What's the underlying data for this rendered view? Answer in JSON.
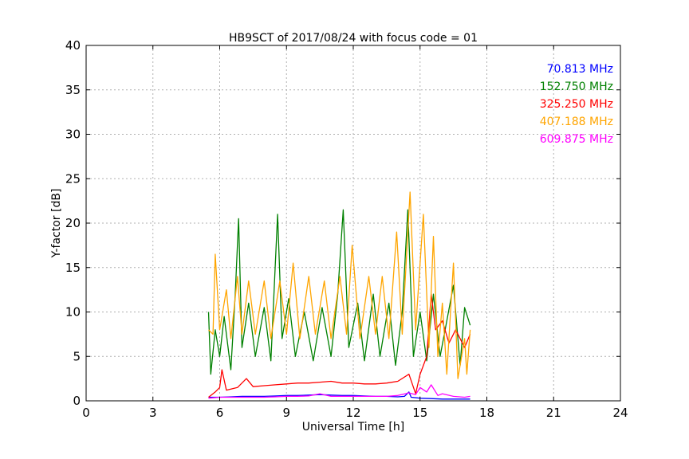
{
  "chart_data": {
    "type": "line",
    "title": "HB9SCT of 2017/08/24 with focus code = 01",
    "xlabel": "Universal Time [h]",
    "ylabel": "Y-factor [dB]",
    "xlim": [
      0,
      24
    ],
    "ylim": [
      0,
      40
    ],
    "xticks": [
      0,
      3,
      6,
      9,
      12,
      15,
      18,
      21,
      24
    ],
    "yticks": [
      0,
      5,
      10,
      15,
      20,
      25,
      30,
      35,
      40
    ],
    "grid": true,
    "legend_position": "top-right",
    "series": [
      {
        "name": "70.813 MHz",
        "color": "#0000ff",
        "points": [
          [
            5.5,
            0.4
          ],
          [
            6.0,
            0.4
          ],
          [
            6.5,
            0.45
          ],
          [
            7.0,
            0.5
          ],
          [
            7.5,
            0.5
          ],
          [
            8.0,
            0.5
          ],
          [
            8.5,
            0.55
          ],
          [
            9.0,
            0.6
          ],
          [
            9.5,
            0.6
          ],
          [
            10.0,
            0.65
          ],
          [
            10.5,
            0.7
          ],
          [
            11.0,
            0.65
          ],
          [
            11.5,
            0.6
          ],
          [
            12.0,
            0.6
          ],
          [
            12.5,
            0.55
          ],
          [
            13.0,
            0.5
          ],
          [
            13.5,
            0.5
          ],
          [
            14.0,
            0.45
          ],
          [
            14.3,
            0.5
          ],
          [
            14.5,
            1.0
          ],
          [
            14.6,
            0.4
          ],
          [
            15.0,
            0.3
          ],
          [
            15.5,
            0.25
          ],
          [
            16.0,
            0.2
          ],
          [
            16.5,
            0.2
          ],
          [
            17.0,
            0.2
          ],
          [
            17.25,
            0.2
          ]
        ]
      },
      {
        "name": "152.750 MHz",
        "color": "#008000",
        "points": [
          [
            5.5,
            10.0
          ],
          [
            5.6,
            3.0
          ],
          [
            5.8,
            8.0
          ],
          [
            6.0,
            5.0
          ],
          [
            6.2,
            9.5
          ],
          [
            6.5,
            3.5
          ],
          [
            6.7,
            12.0
          ],
          [
            6.85,
            20.5
          ],
          [
            7.0,
            6.0
          ],
          [
            7.3,
            11.0
          ],
          [
            7.6,
            5.0
          ],
          [
            8.0,
            10.5
          ],
          [
            8.3,
            4.5
          ],
          [
            8.6,
            21.0
          ],
          [
            8.8,
            7.0
          ],
          [
            9.1,
            11.5
          ],
          [
            9.4,
            5.0
          ],
          [
            9.8,
            10.0
          ],
          [
            10.2,
            4.5
          ],
          [
            10.6,
            10.5
          ],
          [
            11.0,
            5.0
          ],
          [
            11.3,
            12.0
          ],
          [
            11.55,
            21.5
          ],
          [
            11.8,
            6.0
          ],
          [
            12.2,
            11.0
          ],
          [
            12.5,
            4.5
          ],
          [
            12.9,
            12.0
          ],
          [
            13.2,
            5.0
          ],
          [
            13.6,
            11.0
          ],
          [
            13.9,
            4.0
          ],
          [
            14.2,
            10.0
          ],
          [
            14.45,
            21.5
          ],
          [
            14.7,
            5.0
          ],
          [
            15.0,
            10.0
          ],
          [
            15.3,
            4.5
          ],
          [
            15.6,
            12.0
          ],
          [
            15.9,
            5.0
          ],
          [
            16.2,
            9.0
          ],
          [
            16.5,
            13.0
          ],
          [
            16.8,
            4.0
          ],
          [
            17.0,
            10.5
          ],
          [
            17.25,
            8.5
          ]
        ]
      },
      {
        "name": "325.250 MHz",
        "color": "#ff0000",
        "points": [
          [
            5.5,
            0.4
          ],
          [
            5.8,
            1.0
          ],
          [
            6.0,
            1.5
          ],
          [
            6.1,
            3.5
          ],
          [
            6.3,
            1.2
          ],
          [
            6.8,
            1.5
          ],
          [
            7.2,
            2.5
          ],
          [
            7.5,
            1.6
          ],
          [
            8.0,
            1.7
          ],
          [
            8.5,
            1.8
          ],
          [
            9.0,
            1.9
          ],
          [
            9.5,
            2.0
          ],
          [
            10.0,
            2.0
          ],
          [
            10.5,
            2.1
          ],
          [
            11.0,
            2.2
          ],
          [
            11.5,
            2.0
          ],
          [
            12.0,
            2.0
          ],
          [
            12.5,
            1.9
          ],
          [
            13.0,
            1.9
          ],
          [
            13.5,
            2.0
          ],
          [
            14.0,
            2.2
          ],
          [
            14.5,
            3.0
          ],
          [
            14.8,
            0.8
          ],
          [
            15.0,
            3.0
          ],
          [
            15.3,
            5.0
          ],
          [
            15.5,
            12.0
          ],
          [
            15.7,
            8.0
          ],
          [
            16.0,
            9.0
          ],
          [
            16.3,
            6.5
          ],
          [
            16.6,
            8.0
          ],
          [
            17.0,
            6.0
          ],
          [
            17.25,
            7.5
          ]
        ]
      },
      {
        "name": "407.188 MHz",
        "color": "#ffa500",
        "points": [
          [
            5.5,
            8.0
          ],
          [
            5.7,
            7.5
          ],
          [
            5.8,
            16.5
          ],
          [
            6.0,
            8.0
          ],
          [
            6.3,
            12.5
          ],
          [
            6.5,
            7.0
          ],
          [
            6.8,
            14.0
          ],
          [
            7.0,
            7.5
          ],
          [
            7.3,
            13.5
          ],
          [
            7.6,
            7.5
          ],
          [
            8.0,
            13.5
          ],
          [
            8.3,
            7.0
          ],
          [
            8.7,
            13.5
          ],
          [
            9.0,
            7.5
          ],
          [
            9.3,
            15.5
          ],
          [
            9.6,
            7.0
          ],
          [
            10.0,
            14.0
          ],
          [
            10.3,
            7.5
          ],
          [
            10.7,
            13.5
          ],
          [
            11.0,
            7.0
          ],
          [
            11.4,
            14.0
          ],
          [
            11.7,
            7.5
          ],
          [
            11.95,
            17.5
          ],
          [
            12.3,
            7.0
          ],
          [
            12.7,
            14.0
          ],
          [
            13.0,
            7.5
          ],
          [
            13.3,
            14.0
          ],
          [
            13.6,
            7.0
          ],
          [
            13.95,
            19.0
          ],
          [
            14.2,
            7.5
          ],
          [
            14.55,
            23.5
          ],
          [
            14.8,
            8.0
          ],
          [
            15.15,
            21.0
          ],
          [
            15.4,
            6.0
          ],
          [
            15.6,
            18.5
          ],
          [
            15.8,
            5.0
          ],
          [
            16.0,
            11.0
          ],
          [
            16.2,
            3.0
          ],
          [
            16.5,
            15.5
          ],
          [
            16.7,
            2.5
          ],
          [
            17.0,
            7.0
          ],
          [
            17.1,
            3.0
          ],
          [
            17.25,
            8.0
          ]
        ]
      },
      {
        "name": "609.875 MHz",
        "color": "#ff00ff",
        "points": [
          [
            5.5,
            0.3
          ],
          [
            6.0,
            0.4
          ],
          [
            6.5,
            0.4
          ],
          [
            7.0,
            0.4
          ],
          [
            7.5,
            0.4
          ],
          [
            8.0,
            0.4
          ],
          [
            8.5,
            0.45
          ],
          [
            9.0,
            0.5
          ],
          [
            9.5,
            0.5
          ],
          [
            10.0,
            0.55
          ],
          [
            10.5,
            0.8
          ],
          [
            11.0,
            0.5
          ],
          [
            11.5,
            0.5
          ],
          [
            12.0,
            0.5
          ],
          [
            12.5,
            0.5
          ],
          [
            13.0,
            0.5
          ],
          [
            13.5,
            0.5
          ],
          [
            14.0,
            0.6
          ],
          [
            14.5,
            0.9
          ],
          [
            14.8,
            0.7
          ],
          [
            15.0,
            1.5
          ],
          [
            15.3,
            1.0
          ],
          [
            15.5,
            1.8
          ],
          [
            15.8,
            0.6
          ],
          [
            16.0,
            0.8
          ],
          [
            16.5,
            0.5
          ],
          [
            17.0,
            0.4
          ],
          [
            17.25,
            0.5
          ]
        ]
      }
    ]
  }
}
